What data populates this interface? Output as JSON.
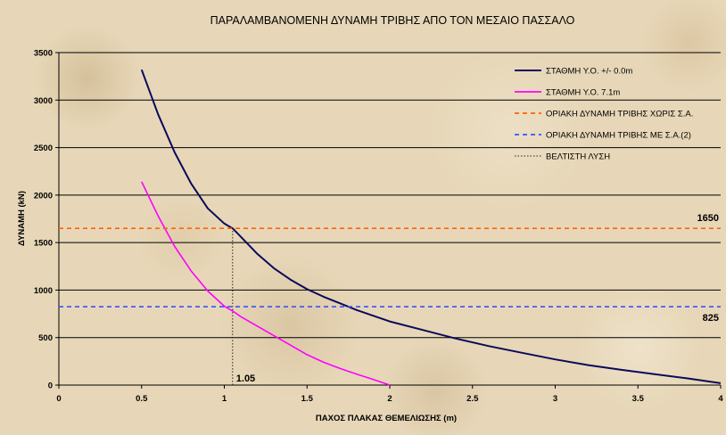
{
  "chart_data": {
    "type": "line",
    "title": "ΠΑΡΑΛΑΜΒΑΝΟΜΕΝΗ ΔΥΝΑΜΗ ΤΡΙΒΗΣ ΑΠΟ ΤΟΝ ΜΕΣΑΙΟ ΠΑΣΣΑΛΟ",
    "xlabel": "ΠΑΧΟΣ ΠΛΑΚΑΣ ΘΕΜΕΛΙΩΣΗΣ (m)",
    "ylabel": "ΔΥΝΑΜΗ (kN)",
    "xlim": [
      0,
      4
    ],
    "ylim": [
      0,
      3500
    ],
    "xticks": [
      "0",
      "0.5",
      "1",
      "1.5",
      "2",
      "2.5",
      "3",
      "3.5",
      "4"
    ],
    "yticks": [
      "0",
      "500",
      "1000",
      "1500",
      "2000",
      "2500",
      "3000",
      "3500"
    ],
    "grid": "horizontal",
    "legend_position": "top-right",
    "series": [
      {
        "name": "ΣΤΑΘΜΗ Υ.Ο. +/- 0.0m",
        "color": "#0a0a5a",
        "style": "solid",
        "x": [
          0.5,
          0.6,
          0.7,
          0.8,
          0.9,
          1.0,
          1.05,
          1.1,
          1.2,
          1.3,
          1.4,
          1.5,
          1.6,
          1.7,
          1.8,
          1.9,
          2.0,
          2.2,
          2.4,
          2.6,
          2.8,
          3.0,
          3.2,
          3.4,
          3.6,
          3.8,
          4.0
        ],
        "y": [
          3320,
          2850,
          2450,
          2120,
          1860,
          1700,
          1650,
          1560,
          1380,
          1230,
          1110,
          1010,
          930,
          860,
          790,
          730,
          670,
          580,
          490,
          410,
          340,
          270,
          210,
          160,
          115,
          70,
          20
        ]
      },
      {
        "name": "ΣΤΑΘΜΗ Υ.Ο. 7.1m",
        "color": "#ff00ff",
        "style": "solid",
        "x": [
          0.5,
          0.6,
          0.7,
          0.8,
          0.9,
          1.0,
          1.05,
          1.1,
          1.2,
          1.3,
          1.4,
          1.5,
          1.6,
          1.7,
          1.8,
          1.9,
          2.0
        ],
        "y": [
          2140,
          1780,
          1460,
          1200,
          990,
          830,
          780,
          720,
          620,
          520,
          420,
          320,
          240,
          175,
          115,
          60,
          0
        ]
      },
      {
        "name": "ΟΡΙΑΚΗ ΔΥΝΑΜΗ ΤΡΙΒΗΣ ΧΩΡΙΣ Σ.Α.",
        "color": "#ff6600",
        "style": "dashed",
        "x": [
          0,
          4
        ],
        "y": [
          1650,
          1650
        ]
      },
      {
        "name": "ΟΡΙΑΚΗ ΔΥΝΑΜΗ ΤΡΙΒΗΣ ΜΕ Σ.Α.(2)",
        "color": "#3355ff",
        "style": "dashed",
        "x": [
          0,
          4
        ],
        "y": [
          825,
          825
        ]
      },
      {
        "name": "ΒΕΛΤΙΣΤΗ ΛΥΣΗ",
        "color": "#222222",
        "style": "dotted",
        "x": [
          1.05,
          1.05
        ],
        "y": [
          0,
          1650
        ]
      }
    ],
    "annotations": [
      {
        "text": "1650",
        "x": 4,
        "y": 1650
      },
      {
        "text": "825",
        "x": 4,
        "y": 825
      },
      {
        "text": "1.05",
        "x": 1.05,
        "y": 0
      }
    ]
  }
}
